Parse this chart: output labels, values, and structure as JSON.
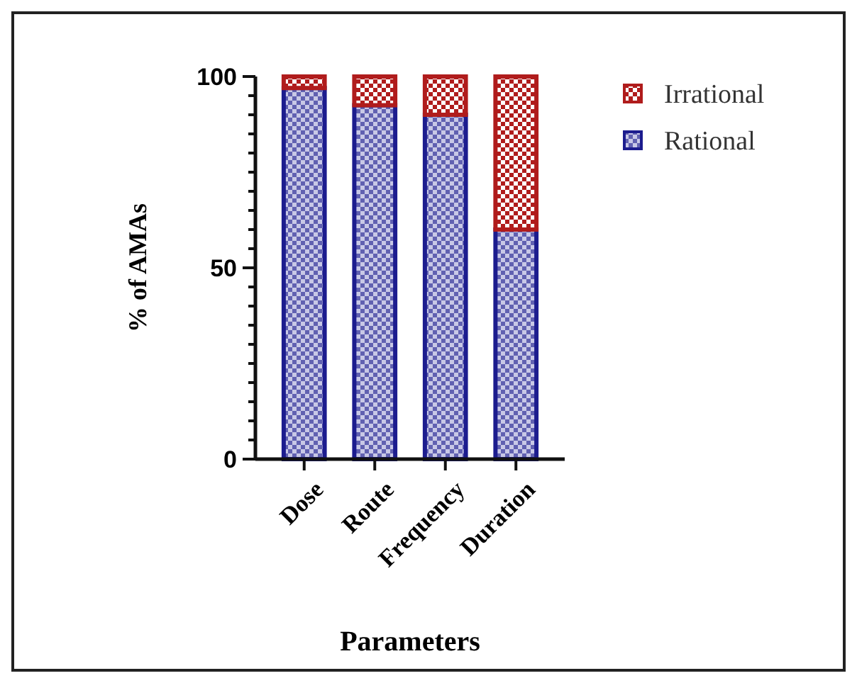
{
  "chart_data": {
    "type": "bar",
    "stacked": true,
    "xlabel": "Parameters",
    "ylabel": "% of AMAs",
    "categories": [
      "Dose",
      "Route",
      "Frequency",
      "Duration"
    ],
    "series": [
      {
        "name": "Rational",
        "color": "#1c1c8e",
        "values": [
          97,
          92.5,
          90,
          60
        ]
      },
      {
        "name": "Irrational",
        "color": "#b01c1c",
        "values": [
          3,
          7.5,
          10,
          40
        ]
      }
    ],
    "ylim": [
      0,
      100
    ],
    "yticks": [
      0,
      {
        "value": 5,
        "label": null
      },
      {
        "value": 10,
        "label": null
      },
      {
        "value": 15,
        "label": null
      },
      {
        "value": 20,
        "label": null
      },
      {
        "value": 25,
        "label": null
      },
      {
        "value": 30,
        "label": null
      },
      {
        "value": 35,
        "label": null
      },
      {
        "value": 40,
        "label": null
      },
      {
        "value": 45,
        "label": null
      },
      50,
      {
        "value": 55,
        "label": null
      },
      {
        "value": 60,
        "label": null
      },
      {
        "value": 65,
        "label": null
      },
      {
        "value": 70,
        "label": null
      },
      {
        "value": 75,
        "label": null
      },
      {
        "value": 80,
        "label": null
      },
      {
        "value": 85,
        "label": null
      },
      {
        "value": 90,
        "label": null
      },
      {
        "value": 95,
        "label": null
      },
      100
    ],
    "legend": "top right",
    "grid": false
  }
}
